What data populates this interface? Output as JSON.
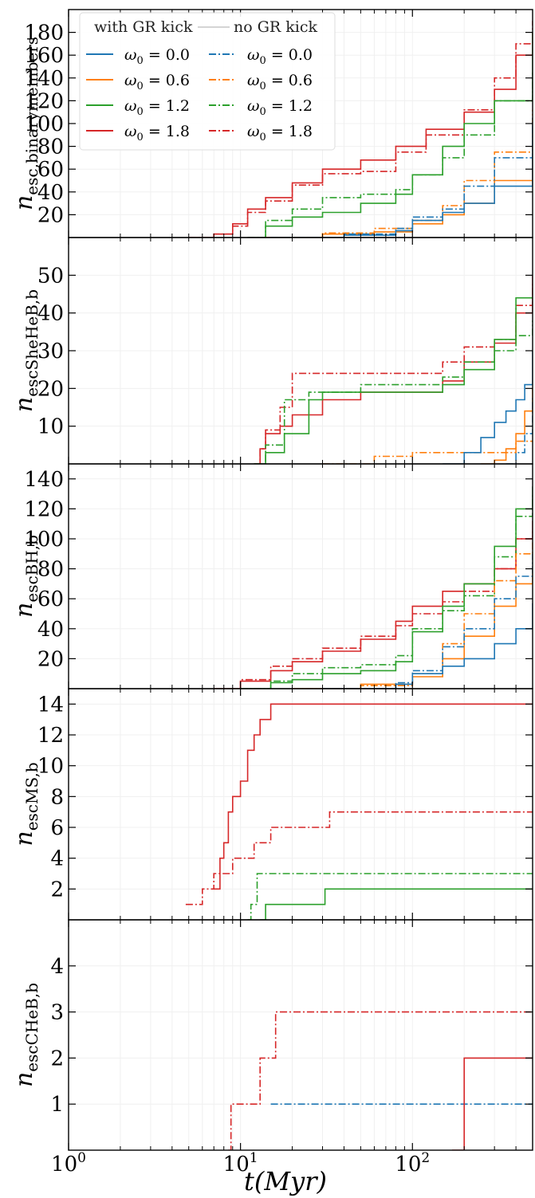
{
  "figure": {
    "x_axis_label": "t(Myr)",
    "x_tick_labels": [
      "10^0",
      "10^1",
      "10^2"
    ],
    "x_scale": "log",
    "x_range": [
      1,
      500
    ],
    "legend": {
      "header_left": "with GR kick",
      "header_right": "no GR kick",
      "placement": "top-left of first panel",
      "entries": [
        {
          "label": "ω0 = 0.0",
          "color": "#1f77b4",
          "style": "solid"
        },
        {
          "label": "ω0 = 0.6",
          "color": "#ff7f0e",
          "style": "solid"
        },
        {
          "label": "ω0 = 1.2",
          "color": "#2ca02c",
          "style": "solid"
        },
        {
          "label": "ω0 = 1.8",
          "color": "#d62728",
          "style": "solid"
        },
        {
          "label": "ω0 = 0.0",
          "color": "#1f77b4",
          "style": "dashdot"
        },
        {
          "label": "ω0 = 0.6",
          "color": "#ff7f0e",
          "style": "dashdot"
        },
        {
          "label": "ω0 = 1.2",
          "color": "#2ca02c",
          "style": "dashdot"
        },
        {
          "label": "ω0 = 1.8",
          "color": "#d62728",
          "style": "dashdot"
        }
      ]
    },
    "colors": {
      "w00": "#1f77b4",
      "w06": "#ff7f0e",
      "w12": "#2ca02c",
      "w18": "#d62728"
    }
  },
  "chart_data": [
    {
      "type": "line",
      "ylabel": "n_esc,binarymembers",
      "x_scale": "log",
      "ylim": [
        0,
        200
      ],
      "yticks": [
        20,
        40,
        60,
        80,
        100,
        120,
        140,
        160,
        180
      ],
      "series": [
        {
          "name": "ω0 = 1.8 with GR kick",
          "color": "#d62728",
          "style": "solid",
          "x": [
            5,
            7,
            9,
            11,
            14,
            20,
            30,
            50,
            80,
            120,
            200,
            300,
            400,
            500
          ],
          "y": [
            0,
            3,
            12,
            25,
            35,
            48,
            60,
            68,
            80,
            95,
            110,
            130,
            160,
            180
          ]
        },
        {
          "name": "ω0 = 1.8 no GR kick",
          "color": "#d62728",
          "style": "dashdot",
          "x": [
            5,
            7,
            9,
            11,
            14,
            20,
            30,
            50,
            80,
            120,
            200,
            300,
            400,
            500
          ],
          "y": [
            0,
            3,
            10,
            22,
            32,
            46,
            56,
            58,
            75,
            90,
            112,
            140,
            170,
            190
          ]
        },
        {
          "name": "ω0 = 1.2 with GR kick",
          "color": "#2ca02c",
          "style": "solid",
          "x": [
            11,
            14,
            20,
            30,
            50,
            80,
            100,
            150,
            200,
            300,
            500
          ],
          "y": [
            0,
            10,
            18,
            22,
            30,
            38,
            55,
            80,
            100,
            120,
            180
          ]
        },
        {
          "name": "ω0 = 1.2 no GR kick",
          "color": "#2ca02c",
          "style": "dashdot",
          "x": [
            11,
            14,
            20,
            30,
            50,
            80,
            100,
            150,
            200,
            300,
            500
          ],
          "y": [
            0,
            15,
            25,
            35,
            38,
            42,
            55,
            70,
            90,
            120,
            145
          ]
        },
        {
          "name": "ω0 = 0.6 with GR kick",
          "color": "#ff7f0e",
          "style": "solid",
          "x": [
            14,
            30,
            60,
            100,
            150,
            200,
            300,
            500
          ],
          "y": [
            0,
            3,
            5,
            12,
            20,
            30,
            50,
            100
          ]
        },
        {
          "name": "ω0 = 0.6 no GR kick",
          "color": "#ff7f0e",
          "style": "dashdot",
          "x": [
            14,
            30,
            60,
            100,
            150,
            200,
            300,
            500
          ],
          "y": [
            0,
            4,
            8,
            15,
            28,
            50,
            75,
            112
          ]
        },
        {
          "name": "ω0 = 0.0 with GR kick",
          "color": "#1f77b4",
          "style": "solid",
          "x": [
            15,
            40,
            80,
            100,
            150,
            200,
            300,
            500
          ],
          "y": [
            0,
            2,
            6,
            15,
            22,
            30,
            45,
            100
          ]
        },
        {
          "name": "ω0 = 0.0 no GR kick",
          "color": "#1f77b4",
          "style": "dashdot",
          "x": [
            15,
            40,
            80,
            100,
            150,
            200,
            300,
            500
          ],
          "y": [
            0,
            3,
            8,
            18,
            25,
            45,
            70,
            105
          ]
        }
      ]
    },
    {
      "type": "line",
      "ylabel": "n_escSheHeB,b",
      "x_scale": "log",
      "ylim": [
        0,
        60
      ],
      "yticks": [
        10,
        20,
        30,
        40,
        50
      ],
      "series": [
        {
          "name": "ω0 = 1.8 with GR kick",
          "color": "#d62728",
          "style": "solid",
          "x": [
            12,
            13,
            14,
            17,
            20,
            30,
            50,
            100,
            150,
            200,
            300,
            400,
            500
          ],
          "y": [
            0,
            4,
            8,
            10,
            13,
            17,
            19,
            19,
            22,
            27,
            32,
            40,
            50
          ]
        },
        {
          "name": "ω0 = 1.8 no GR kick",
          "color": "#d62728",
          "style": "dashdot",
          "x": [
            12,
            13,
            14,
            17,
            20,
            30,
            50,
            100,
            150,
            200,
            300,
            400,
            500
          ],
          "y": [
            0,
            4,
            9,
            15,
            24,
            24,
            24,
            24,
            27,
            31,
            33,
            42,
            48
          ]
        },
        {
          "name": "ω0 = 1.2 with GR kick",
          "color": "#2ca02c",
          "style": "solid",
          "x": [
            12,
            14,
            18,
            25,
            30,
            50,
            100,
            150,
            200,
            300,
            400,
            500
          ],
          "y": [
            0,
            3,
            8,
            17,
            19,
            19,
            19,
            21,
            25,
            33,
            44,
            44
          ]
        },
        {
          "name": "ω0 = 1.2 no GR kick",
          "color": "#2ca02c",
          "style": "dashdot",
          "x": [
            12,
            14,
            18,
            25,
            30,
            50,
            100,
            150,
            200,
            300,
            400,
            500
          ],
          "y": [
            0,
            5,
            17,
            19,
            19,
            21,
            21,
            23,
            27,
            30,
            34,
            38
          ]
        },
        {
          "name": "ω0 = 0.6 with GR kick",
          "color": "#ff7f0e",
          "style": "solid",
          "x": [
            250,
            300,
            350,
            400,
            450,
            500
          ],
          "y": [
            0,
            1,
            4,
            8,
            14,
            20
          ]
        },
        {
          "name": "ω0 = 0.6 no GR kick",
          "color": "#ff7f0e",
          "style": "dashdot",
          "x": [
            30,
            60,
            100,
            150,
            200,
            350,
            400,
            500
          ],
          "y": [
            0,
            2,
            3,
            3,
            3,
            3,
            6,
            6
          ]
        },
        {
          "name": "ω0 = 0.0 with GR kick",
          "color": "#1f77b4",
          "style": "solid",
          "x": [
            150,
            200,
            250,
            300,
            350,
            400,
            450,
            500
          ],
          "y": [
            0,
            3,
            7,
            11,
            14,
            17,
            21,
            30
          ]
        },
        {
          "name": "ω0 = 0.0 no GR kick",
          "color": "#1f77b4",
          "style": "dashdot",
          "x": [
            350,
            400,
            450,
            500
          ],
          "y": [
            0,
            3,
            8,
            18
          ]
        }
      ]
    },
    {
      "type": "line",
      "ylabel": "n_escBH,b",
      "x_scale": "log",
      "ylim": [
        0,
        150
      ],
      "yticks": [
        20,
        40,
        60,
        80,
        100,
        120,
        140
      ],
      "series": [
        {
          "name": "ω0 = 1.8 with GR kick",
          "color": "#d62728",
          "style": "solid",
          "x": [
            7,
            10,
            15,
            20,
            30,
            50,
            80,
            100,
            150,
            200,
            300,
            400,
            500
          ],
          "y": [
            0,
            5,
            12,
            18,
            25,
            33,
            45,
            55,
            65,
            70,
            80,
            100,
            112
          ]
        },
        {
          "name": "ω0 = 1.8 no GR kick",
          "color": "#d62728",
          "style": "dashdot",
          "x": [
            7,
            10,
            15,
            20,
            30,
            50,
            80,
            100,
            150,
            200,
            300,
            400,
            500
          ],
          "y": [
            0,
            6,
            15,
            20,
            27,
            35,
            42,
            50,
            58,
            65,
            80,
            100,
            105
          ]
        },
        {
          "name": "ω0 = 1.2 with GR kick",
          "color": "#2ca02c",
          "style": "solid",
          "x": [
            10,
            15,
            20,
            30,
            50,
            80,
            100,
            150,
            200,
            300,
            400,
            500
          ],
          "y": [
            0,
            4,
            6,
            10,
            12,
            18,
            38,
            55,
            70,
            95,
            120,
            135
          ]
        },
        {
          "name": "ω0 = 1.2 no GR kick",
          "color": "#2ca02c",
          "style": "dashdot",
          "x": [
            10,
            15,
            20,
            30,
            50,
            80,
            100,
            150,
            200,
            300,
            400,
            500
          ],
          "y": [
            0,
            5,
            10,
            14,
            16,
            22,
            40,
            52,
            62,
            88,
            115,
            130
          ]
        },
        {
          "name": "ω0 = 0.6 with GR kick",
          "color": "#ff7f0e",
          "style": "solid",
          "x": [
            20,
            50,
            100,
            150,
            200,
            300,
            400,
            500
          ],
          "y": [
            0,
            3,
            8,
            20,
            35,
            55,
            70,
            80
          ]
        },
        {
          "name": "ω0 = 0.6 no GR kick",
          "color": "#ff7f0e",
          "style": "dashdot",
          "x": [
            20,
            50,
            100,
            150,
            200,
            300,
            400,
            500
          ],
          "y": [
            0,
            2,
            10,
            30,
            50,
            72,
            90,
            100
          ]
        },
        {
          "name": "ω0 = 0.0 with GR kick",
          "color": "#1f77b4",
          "style": "solid",
          "x": [
            30,
            80,
            100,
            150,
            200,
            300,
            400,
            500
          ],
          "y": [
            0,
            3,
            10,
            15,
            20,
            30,
            40,
            57
          ]
        },
        {
          "name": "ω0 = 0.0 no GR kick",
          "color": "#1f77b4",
          "style": "dashdot",
          "x": [
            30,
            80,
            100,
            150,
            200,
            300,
            400,
            500
          ],
          "y": [
            0,
            4,
            12,
            28,
            40,
            60,
            75,
            90
          ]
        }
      ]
    },
    {
      "type": "line",
      "ylabel": "n_escMS,b",
      "x_scale": "log",
      "ylim": [
        0,
        15
      ],
      "yticks": [
        2,
        4,
        6,
        8,
        10,
        12,
        14
      ],
      "series": [
        {
          "name": "ω0 = 1.8 with GR kick",
          "color": "#d62728",
          "style": "solid",
          "x": [
            7,
            7.6,
            8,
            8.5,
            9,
            10,
            11,
            12,
            13,
            14,
            15,
            500
          ],
          "y": [
            2,
            4,
            5,
            7,
            8,
            9,
            11,
            12,
            13,
            13,
            14,
            14
          ]
        },
        {
          "name": "ω0 = 1.8 no GR kick",
          "color": "#d62728",
          "style": "dashdot",
          "x": [
            4.8,
            6,
            7,
            8,
            9,
            10,
            12,
            15,
            20,
            30,
            33,
            500
          ],
          "y": [
            1,
            2,
            3,
            3,
            4,
            4,
            5,
            6,
            6,
            6,
            7,
            7
          ]
        },
        {
          "name": "ω0 = 1.2 with GR kick",
          "color": "#2ca02c",
          "style": "solid",
          "x": [
            13,
            14,
            30,
            31,
            500
          ],
          "y": [
            0,
            1,
            1,
            2,
            2
          ]
        },
        {
          "name": "ω0 = 1.2 no GR kick",
          "color": "#2ca02c",
          "style": "dashdot",
          "x": [
            11,
            11.5,
            12.5,
            500
          ],
          "y": [
            0,
            1,
            3,
            3
          ]
        }
      ]
    },
    {
      "type": "line",
      "ylabel": "n_escCHeB,b",
      "x_scale": "log",
      "ylim": [
        0,
        5
      ],
      "yticks": [
        1,
        2,
        3,
        4
      ],
      "series": [
        {
          "name": "ω0 = 1.8 no GR kick",
          "color": "#d62728",
          "style": "dashdot",
          "x": [
            8.5,
            8.8,
            12,
            13,
            15,
            16,
            500
          ],
          "y": [
            0,
            1,
            1,
            2,
            2,
            3,
            3
          ]
        },
        {
          "name": "ω0 = 0.0 no GR kick",
          "color": "#1f77b4",
          "style": "dashdot",
          "x": [
            15,
            500
          ],
          "y": [
            1,
            1
          ]
        },
        {
          "name": "ω0 = 1.8 with GR kick",
          "color": "#d62728",
          "style": "solid",
          "x": [
            170,
            200,
            500
          ],
          "y": [
            0,
            2,
            2
          ]
        }
      ]
    }
  ]
}
